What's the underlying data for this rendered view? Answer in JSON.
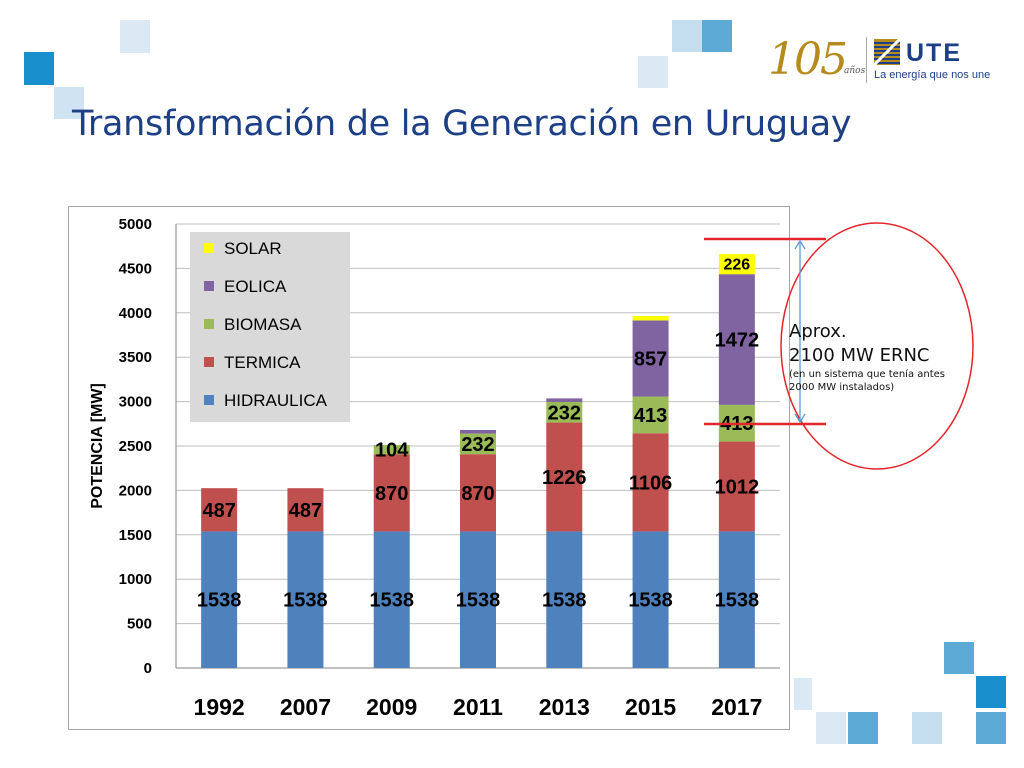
{
  "slide": {
    "title": "Transformación de la Generación en Uruguay"
  },
  "branding": {
    "anniversary_number": "105",
    "anniversary_unit": "años",
    "company_name": "UTE",
    "tagline": "La energía que nos une",
    "colors": {
      "title": "#1d3f86",
      "gold": "#b58a1e",
      "square_light": "#c6dff0",
      "square_mid": "#5eaad6",
      "square_dark": "#1a8fce"
    }
  },
  "annotation": {
    "line1": "Aprox.",
    "line2": "2100 MW ERNC",
    "line3": "(en un sistema que tenía antes 2000 MW instalados)",
    "ellipse_color": "#e2262b",
    "arrow_color": "#5b9bd5"
  },
  "chart_data": {
    "type": "bar",
    "stacked": true,
    "categories": [
      "1992",
      "2007",
      "2009",
      "2011",
      "2013",
      "2015",
      "2017"
    ],
    "ylabel": "POTENCIA [MW]",
    "ylim": [
      0,
      5000
    ],
    "yticks": [
      0,
      500,
      1000,
      1500,
      2000,
      2500,
      3000,
      3500,
      4000,
      4500,
      5000
    ],
    "grid": true,
    "legend_position": "top-left",
    "legend_order": [
      "SOLAR",
      "EOLICA",
      "BIOMASA",
      "TERMICA",
      "HIDRAULICA"
    ],
    "series": [
      {
        "name": "HIDRAULICA",
        "color": "#4f81bd",
        "values": [
          1538,
          1538,
          1538,
          1538,
          1538,
          1538,
          1538
        ],
        "labels": [
          "1538",
          "1538",
          "1538",
          "1538",
          "1538",
          "1538",
          "1538"
        ]
      },
      {
        "name": "TERMICA",
        "color": "#c0504d",
        "values": [
          487,
          487,
          870,
          870,
          1226,
          1106,
          1012
        ],
        "labels": [
          "487",
          "487",
          "870",
          "870",
          "1226",
          "1106",
          "1012"
        ]
      },
      {
        "name": "BIOMASA",
        "color": "#9bbb59",
        "values": [
          0,
          0,
          104,
          232,
          232,
          413,
          413
        ],
        "labels": [
          "",
          "",
          "104",
          "232",
          "232",
          "413",
          "413"
        ]
      },
      {
        "name": "EOLICA",
        "color": "#8064a2",
        "values": [
          0,
          0,
          0,
          40,
          40,
          857,
          1472
        ],
        "labels": [
          "",
          "",
          "",
          "",
          "",
          "857",
          "1472"
        ]
      },
      {
        "name": "SOLAR",
        "color": "#ffff00",
        "values": [
          0,
          0,
          0,
          0,
          0,
          50,
          226
        ],
        "labels": [
          "",
          "",
          "",
          "",
          "",
          "",
          "226"
        ]
      }
    ]
  }
}
